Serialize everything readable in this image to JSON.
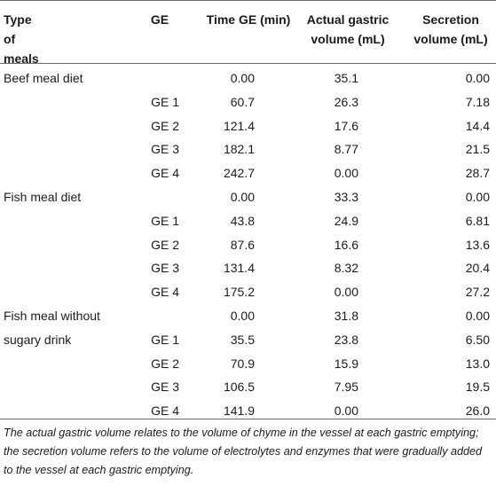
{
  "headers": {
    "meal": "Type of meals",
    "ge": "GE",
    "time": "Time GE (min)",
    "actual_l1": "Actual gastric",
    "actual_l2": "volume (mL)",
    "secretion_l1": "Secretion",
    "secretion_l2": "volume (mL)"
  },
  "rows": [
    {
      "meal": "Beef meal diet",
      "ge": "",
      "time": "0.00",
      "actual": "35.1",
      "secretion": "0.00"
    },
    {
      "meal": "",
      "ge": "GE 1",
      "time": "60.7",
      "actual": "26.3",
      "secretion": "7.18"
    },
    {
      "meal": "",
      "ge": "GE 2",
      "time": "121.4",
      "actual": "17.6",
      "secretion": "14.4"
    },
    {
      "meal": "",
      "ge": "GE 3",
      "time": "182.1",
      "actual": "8.77",
      "secretion": "21.5"
    },
    {
      "meal": "",
      "ge": "GE 4",
      "time": "242.7",
      "actual": "0.00",
      "secretion": "28.7"
    },
    {
      "meal": "Fish meal diet",
      "ge": "",
      "time": "0.00",
      "actual": "33.3",
      "secretion": "0.00"
    },
    {
      "meal": "",
      "ge": "GE 1",
      "time": "43.8",
      "actual": "24.9",
      "secretion": "6.81"
    },
    {
      "meal": "",
      "ge": "GE 2",
      "time": "87.6",
      "actual": "16.6",
      "secretion": "13.6"
    },
    {
      "meal": "",
      "ge": "GE 3",
      "time": "131.4",
      "actual": "8.32",
      "secretion": "20.4"
    },
    {
      "meal": "",
      "ge": "GE 4",
      "time": "175.2",
      "actual": "0.00",
      "secretion": "27.2"
    },
    {
      "meal": "Fish meal without",
      "ge": "",
      "time": "0.00",
      "actual": "31.8",
      "secretion": "0.00"
    },
    {
      "meal": "sugary drink",
      "ge": "GE 1",
      "time": "35.5",
      "actual": "23.8",
      "secretion": "6.50"
    },
    {
      "meal": "",
      "ge": "GE 2",
      "time": "70.9",
      "actual": "15.9",
      "secretion": "13.0"
    },
    {
      "meal": "",
      "ge": "GE 3",
      "time": "106.5",
      "actual": "7.95",
      "secretion": "19.5"
    },
    {
      "meal": "",
      "ge": "GE 4",
      "time": "141.9",
      "actual": "0.00",
      "secretion": "26.0"
    }
  ],
  "footnote": "The actual gastric volume relates to the volume of chyme in the vessel at each gastric emptying; the secretion volume refers to the volume of electrolytes and enzymes that were gradually added to the vessel at each gastric emptying."
}
